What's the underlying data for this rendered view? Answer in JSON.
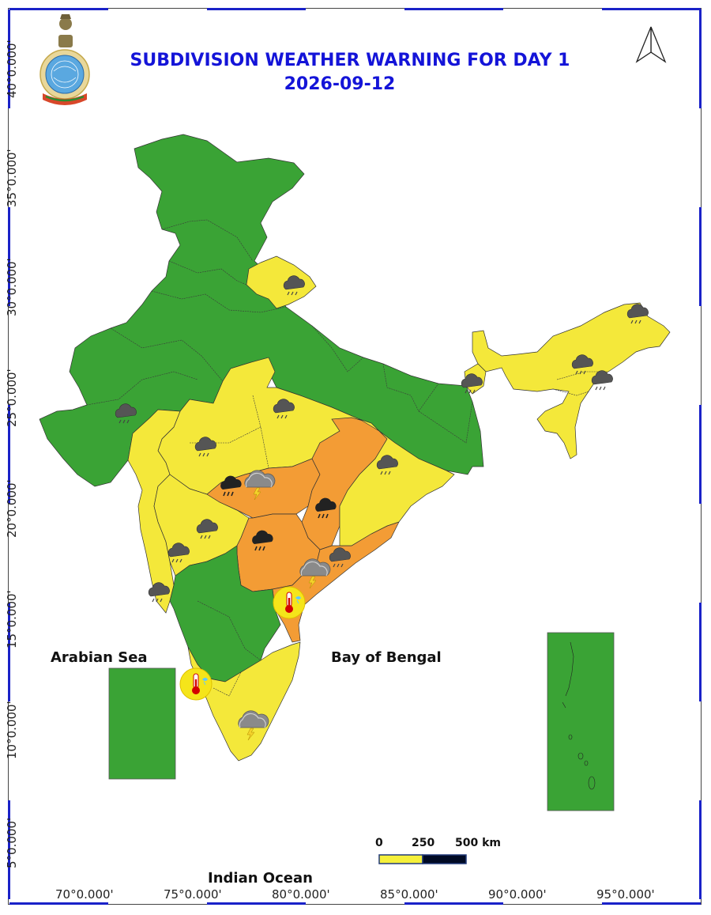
{
  "title": {
    "line1": "SUBDIVISION WEATHER WARNING FOR DAY 1",
    "line2": "2026-09-12"
  },
  "latitude_labels": [
    "40°0.000'",
    "35°0.000'",
    "30°0.000'",
    "25°0.000'",
    "20°0.000'",
    "15°0.000'",
    "10°0.000'",
    "5°0.000'"
  ],
  "longitude_labels": [
    "70°0.000'",
    "75°0.000'",
    "80°0.000'",
    "85°0.000'",
    "90°0.000'",
    "95°0.000'"
  ],
  "sea_labels": {
    "arabian_sea": "Arabian Sea",
    "bay_of_bengal": "Bay of Bengal",
    "indian_ocean": "Indian Ocean"
  },
  "scale_bar": {
    "zero": "0",
    "mid": "250",
    "end": "500 km"
  },
  "colors": {
    "no_warning": "#3aa335",
    "watch_yellow": "#f4e83a",
    "alert_orange": "#f39c35",
    "title_blue": "#1414d8"
  },
  "icons": {
    "rain": "rain-cloud-icon",
    "heavy_rain": "heavy-rain-icon",
    "thunderstorm": "thunderstorm-icon",
    "heat": "thermometer-icon",
    "north_arrow": "north-arrow-icon",
    "emblem": "imd-emblem-icon"
  }
}
